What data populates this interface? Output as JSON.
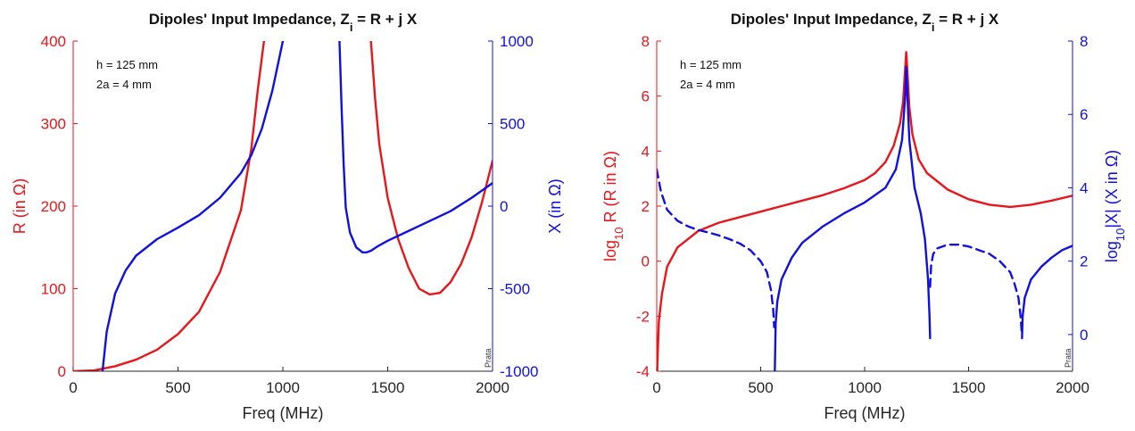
{
  "chart_data": [
    {
      "type": "line",
      "title": "Dipoles' Input Impedance, Z",
      "title_sub": "i",
      "title_rest": " = R + j X",
      "xlabel": "Freq (MHz)",
      "ylabel_left": "R  (in Ω)",
      "ylabel_right": "X  (in Ω)",
      "xlim": [
        0,
        2000
      ],
      "ylim_left": [
        0,
        400
      ],
      "ylim_right": [
        -1000,
        1000
      ],
      "xticks": [
        0,
        500,
        1000,
        1500,
        2000
      ],
      "yticks_left": [
        0,
        100,
        200,
        300,
        400
      ],
      "yticks_right": [
        -1000,
        -500,
        0,
        500,
        1000
      ],
      "annotations": [
        "h   = 125 mm",
        "2a = 4 mm"
      ],
      "credit": "Prata",
      "colors": {
        "left": "#e8161b",
        "right": "#1010e0"
      },
      "series": [
        {
          "axis": "left",
          "style": "solid",
          "x": [
            0,
            100,
            200,
            300,
            400,
            500,
            600,
            700,
            800,
            850,
            880,
            910
          ],
          "y": [
            0,
            1,
            6,
            14,
            26,
            45,
            72,
            120,
            195,
            270,
            340,
            400
          ]
        },
        {
          "axis": "left",
          "style": "solid",
          "x": [
            1420,
            1440,
            1460,
            1500,
            1550,
            1600,
            1650,
            1700,
            1750,
            1800,
            1850,
            1900,
            1950,
            2000
          ],
          "y": [
            400,
            330,
            275,
            210,
            160,
            125,
            100,
            93,
            95,
            108,
            130,
            162,
            205,
            255
          ]
        },
        {
          "axis": "right",
          "style": "solid",
          "x": [
            140,
            160,
            200,
            250,
            300,
            400,
            500,
            600,
            700,
            800,
            850,
            900,
            950,
            980,
            1000
          ],
          "y": [
            -1000,
            -760,
            -530,
            -390,
            -300,
            -200,
            -130,
            -55,
            50,
            200,
            310,
            470,
            700,
            880,
            1000
          ]
        },
        {
          "axis": "right",
          "style": "solid",
          "x": [
            1270,
            1280,
            1290,
            1300,
            1320,
            1350,
            1380,
            1400,
            1420,
            1450,
            1500,
            1600,
            1700,
            1800,
            1900,
            2000
          ],
          "y": [
            1000,
            600,
            250,
            -10,
            -160,
            -250,
            -280,
            -280,
            -270,
            -245,
            -210,
            -150,
            -90,
            -30,
            50,
            140
          ]
        }
      ]
    },
    {
      "type": "line",
      "title": "Dipoles' Input Impedance, Z",
      "title_sub": "i",
      "title_rest": " = R + j X",
      "xlabel": "Freq (MHz)",
      "ylabel_left": "log",
      "ylabel_left_sub": "10",
      "ylabel_left_rest": " R  (R in Ω)",
      "ylabel_right": "log",
      "ylabel_right_sub": "10",
      "ylabel_right_rest": "|X|  (X in Ω)",
      "xlim": [
        0,
        2000
      ],
      "ylim_left": [
        -4,
        8
      ],
      "ylim_right": [
        -1,
        8
      ],
      "xticks": [
        0,
        500,
        1000,
        1500,
        2000
      ],
      "yticks_left": [
        -4,
        -2,
        0,
        2,
        4,
        6,
        8
      ],
      "yticks_right": [
        0,
        2,
        4,
        6,
        8
      ],
      "annotations": [
        "h   = 125 mm",
        "2a = 4 mm"
      ],
      "credit": "Prata",
      "colors": {
        "left": "#e8161b",
        "right": "#1010e0"
      },
      "series": [
        {
          "axis": "left",
          "style": "solid",
          "x": [
            2,
            10,
            25,
            50,
            100,
            200,
            300,
            400,
            500,
            600,
            700,
            800,
            900,
            1000,
            1050,
            1100,
            1140,
            1170,
            1185,
            1195,
            1200,
            1205,
            1215,
            1230,
            1260,
            1300,
            1400,
            1500,
            1600,
            1700,
            1800,
            1900,
            2000
          ],
          "y": [
            -4,
            -2.2,
            -1.2,
            -0.2,
            0.5,
            1.1,
            1.4,
            1.6,
            1.8,
            2.0,
            2.2,
            2.4,
            2.65,
            2.95,
            3.2,
            3.6,
            4.2,
            5.0,
            5.8,
            7.0,
            7.6,
            7.0,
            5.6,
            4.6,
            3.7,
            3.2,
            2.6,
            2.25,
            2.05,
            1.97,
            2.05,
            2.2,
            2.38
          ]
        },
        {
          "axis": "right",
          "style": "dashed",
          "x": [
            0,
            20,
            50,
            100,
            150,
            200,
            250,
            300,
            350,
            400,
            450,
            500,
            530,
            550,
            560,
            565
          ],
          "y": [
            4.5,
            3.9,
            3.4,
            3.1,
            2.95,
            2.85,
            2.78,
            2.7,
            2.6,
            2.48,
            2.3,
            2.0,
            1.7,
            1.2,
            0.7,
            0.2
          ]
        },
        {
          "axis": "right",
          "style": "solid",
          "x": [
            568,
            572,
            580,
            600,
            650,
            700,
            800,
            900,
            1000,
            1100,
            1150,
            1180,
            1195,
            1200,
            1205,
            1215,
            1240,
            1270,
            1290,
            1305,
            1312,
            1315
          ],
          "y": [
            -1,
            0.3,
            0.9,
            1.5,
            2.1,
            2.5,
            2.95,
            3.3,
            3.6,
            4.0,
            4.5,
            5.3,
            6.5,
            7.3,
            6.6,
            5.3,
            4.0,
            3.3,
            2.6,
            1.5,
            0.5,
            -0.1
          ]
        },
        {
          "axis": "right",
          "style": "dashed",
          "x": [
            1315,
            1320,
            1330,
            1350,
            1400,
            1450,
            1500,
            1550,
            1600,
            1650,
            1700,
            1720,
            1740,
            1750,
            1755
          ],
          "y": [
            1.3,
            1.9,
            2.2,
            2.35,
            2.45,
            2.45,
            2.4,
            2.3,
            2.2,
            2.0,
            1.7,
            1.4,
            1.0,
            0.5,
            0.1
          ]
        },
        {
          "axis": "right",
          "style": "solid",
          "x": [
            1757,
            1760,
            1770,
            1800,
            1850,
            1900,
            1950,
            2000
          ],
          "y": [
            -0.1,
            0.5,
            1.0,
            1.5,
            1.85,
            2.1,
            2.3,
            2.42
          ]
        }
      ]
    }
  ]
}
